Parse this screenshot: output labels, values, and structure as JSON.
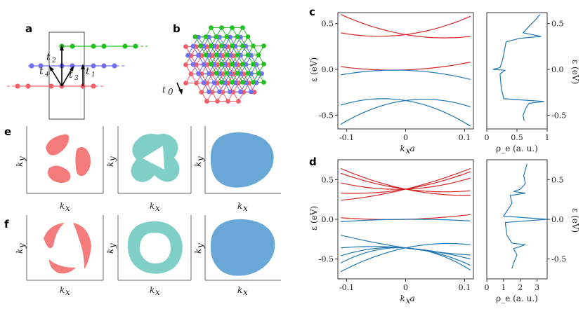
{
  "colors": {
    "red": "#d62728",
    "blue": "#1f77b4",
    "salmon": "#f47b7b",
    "teal": "#7fcfc7",
    "steel": "#69a8d6",
    "lattice_red": "#f0606a",
    "lattice_blue": "#6f6ff0",
    "lattice_green": "#22c022"
  },
  "panels": {
    "a": {
      "letter": "a",
      "hopping_labels": [
        "t",
        "2",
        "t",
        "4",
        "t",
        "3",
        "t",
        "1"
      ]
    },
    "b": {
      "letter": "b",
      "hop0_label": "t",
      "hop0_sub": "0"
    },
    "c": {
      "letter": "c"
    },
    "d": {
      "letter": "d"
    },
    "e": {
      "letter": "e",
      "xlabel": "k",
      "xsub": "x",
      "ylabel": "k",
      "ysub": "y"
    },
    "f": {
      "letter": "f",
      "xlabel": "k",
      "xsub": "x",
      "ylabel": "k",
      "ysub": "y"
    }
  },
  "chart_data": [
    {
      "id": "c-bands",
      "type": "line",
      "xlabel": "k_x a",
      "ylabel": "ε (eV)",
      "xticks": [
        "-0.1",
        "0",
        "0.1"
      ],
      "yticks": [
        "-0.5",
        "0.0",
        "0.5"
      ],
      "xlim": [
        -0.115,
        0.115
      ],
      "ylim": [
        -0.65,
        0.62
      ],
      "series": [
        {
          "color": "red",
          "x": [
            -0.11,
            0,
            0.11
          ],
          "y": [
            0.6,
            0.38,
            0.36
          ]
        },
        {
          "color": "red",
          "x": [
            -0.11,
            0,
            0.11
          ],
          "y": [
            0.4,
            0.38,
            0.58
          ]
        },
        {
          "color": "red",
          "x": [
            -0.11,
            0,
            0.11
          ],
          "y": [
            0.03,
            -0.005,
            0.08
          ]
        },
        {
          "color": "blue",
          "x": [
            -0.11,
            0,
            0.11
          ],
          "y": [
            -0.06,
            -0.01,
            -0.11
          ]
        },
        {
          "color": "blue",
          "x": [
            -0.11,
            0,
            0.11
          ],
          "y": [
            -0.39,
            -0.34,
            -0.62
          ]
        },
        {
          "color": "blue",
          "x": [
            -0.11,
            0,
            0.11
          ],
          "y": [
            -0.6,
            -0.34,
            -0.41
          ]
        }
      ]
    },
    {
      "id": "c-dos",
      "type": "line",
      "xlabel": "ρ_e (a. u.)",
      "ylabel": "ε (eV)",
      "xticks": [
        "0",
        "0.5",
        "1"
      ],
      "yticks": [
        "-0.5",
        "0.0",
        "0.5"
      ],
      "xlim": [
        0,
        1
      ],
      "ylim": [
        -0.65,
        0.62
      ],
      "points": [
        [
          0.88,
          0.6
        ],
        [
          0.82,
          0.55
        ],
        [
          0.7,
          0.47
        ],
        [
          0.6,
          0.4
        ],
        [
          0.9,
          0.36
        ],
        [
          0.55,
          0.34
        ],
        [
          0.32,
          0.3
        ],
        [
          0.26,
          0.1
        ],
        [
          0.22,
          0.02
        ],
        [
          0.1,
          0.0
        ],
        [
          0.3,
          -0.01
        ],
        [
          0.22,
          -0.05
        ],
        [
          0.24,
          -0.2
        ],
        [
          0.28,
          -0.32
        ],
        [
          0.95,
          -0.35
        ],
        [
          0.7,
          -0.37
        ],
        [
          0.65,
          -0.42
        ],
        [
          0.6,
          -0.5
        ],
        [
          0.62,
          -0.56
        ]
      ]
    },
    {
      "id": "d-bands",
      "type": "line",
      "xlabel": "k_x a",
      "ylabel": "ε (eV)",
      "xticks": [
        "-0.1",
        "0",
        "0.1"
      ],
      "yticks": [
        "-0.5",
        "0.0",
        "0.5"
      ],
      "xlim": [
        -0.115,
        0.115
      ],
      "ylim": [
        -0.75,
        0.75
      ],
      "series": [
        {
          "color": "red",
          "x": [
            -0.11,
            0,
            0.11
          ],
          "y": [
            0.64,
            0.38,
            0.3
          ]
        },
        {
          "color": "red",
          "x": [
            -0.11,
            0,
            0.11
          ],
          "y": [
            0.58,
            0.38,
            0.36
          ]
        },
        {
          "color": "red",
          "x": [
            -0.11,
            0,
            0.11
          ],
          "y": [
            0.46,
            0.38,
            0.52
          ]
        },
        {
          "color": "red",
          "x": [
            -0.11,
            0,
            0.11
          ],
          "y": [
            0.33,
            0.38,
            0.6
          ]
        },
        {
          "color": "red",
          "x": [
            -0.11,
            0,
            0.11
          ],
          "y": [
            0.24,
            0.38,
            0.64
          ]
        },
        {
          "color": "red",
          "x": [
            -0.11,
            0,
            0.11
          ],
          "y": [
            0.02,
            0.0,
            0.06
          ]
        },
        {
          "color": "blue",
          "x": [
            -0.11,
            0,
            0.11
          ],
          "y": [
            -0.03,
            0.0,
            -0.02
          ]
        },
        {
          "color": "blue",
          "x": [
            -0.11,
            0,
            0.11
          ],
          "y": [
            -0.2,
            -0.36,
            -0.45
          ]
        },
        {
          "color": "blue",
          "x": [
            -0.11,
            0,
            0.11
          ],
          "y": [
            -0.36,
            -0.36,
            -0.5
          ]
        },
        {
          "color": "blue",
          "x": [
            -0.11,
            0,
            0.11
          ],
          "y": [
            -0.46,
            -0.36,
            -0.58
          ]
        },
        {
          "color": "blue",
          "x": [
            -0.11,
            0,
            0.11
          ],
          "y": [
            -0.55,
            -0.36,
            -0.64
          ]
        },
        {
          "color": "blue",
          "x": [
            -0.11,
            0,
            0.11
          ],
          "y": [
            -0.66,
            -0.36,
            -0.32
          ]
        }
      ]
    },
    {
      "id": "d-dos",
      "type": "line",
      "xlabel": "ρ_e (a. u.)",
      "ylabel": "ε (eV)",
      "xticks": [
        "0",
        "1",
        "2",
        "3"
      ],
      "yticks": [
        "-0.5",
        "0.0",
        "0.5"
      ],
      "xlim": [
        0,
        3.6
      ],
      "ylim": [
        -0.75,
        0.75
      ],
      "points": [
        [
          2.4,
          0.7
        ],
        [
          2.2,
          0.55
        ],
        [
          2.3,
          0.45
        ],
        [
          2.0,
          0.38
        ],
        [
          1.6,
          0.35
        ],
        [
          2.3,
          0.33
        ],
        [
          1.4,
          0.3
        ],
        [
          1.5,
          0.2
        ],
        [
          1.0,
          0.04
        ],
        [
          3.6,
          0.0
        ],
        [
          1.1,
          -0.04
        ],
        [
          1.2,
          -0.2
        ],
        [
          1.5,
          -0.3
        ],
        [
          2.3,
          -0.32
        ],
        [
          1.6,
          -0.37
        ],
        [
          1.8,
          -0.45
        ],
        [
          1.6,
          -0.55
        ],
        [
          1.5,
          -0.62
        ]
      ]
    }
  ]
}
